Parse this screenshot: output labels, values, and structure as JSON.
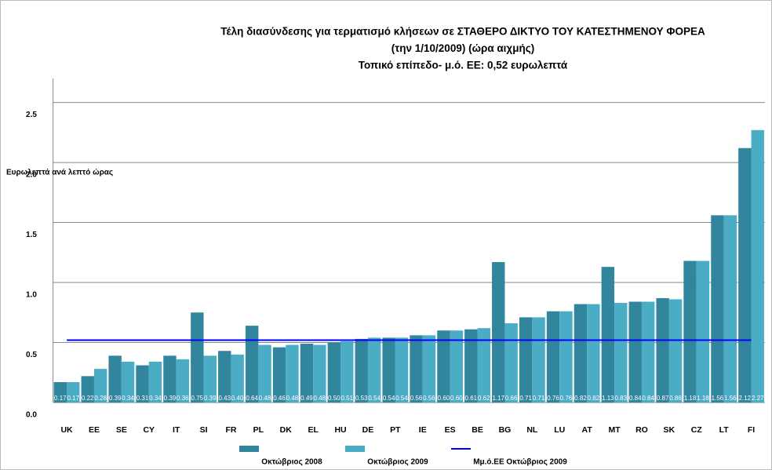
{
  "chart_data": {
    "type": "bar",
    "title": [
      "Τέλη διασύνδεσης για τερματισμό κλήσεων σε ΣΤΑΘΕΡΟ ΔΙΚΤΥΟ ΤΟΥ ΚΑΤΕΣΤΗΜΕΝΟΥ ΦΟΡΕΑ",
      "(την 1/10/2009) (ώρα αιχμής)",
      "Τοπικό επίπεδο- μ.ό. ΕΕ: 0,52 ευρωλεπτά"
    ],
    "y_label": "Ευρωλεπτά ανά λεπτό ώρας",
    "categories": [
      "UK",
      "EE",
      "SE",
      "CY",
      "IT",
      "SI",
      "FR",
      "PL",
      "DK",
      "EL",
      "HU",
      "DE",
      "PT",
      "IE",
      "ES",
      "BE",
      "BG",
      "NL",
      "LU",
      "AT",
      "MT",
      "RO",
      "SK",
      "CZ",
      "LT",
      "FI"
    ],
    "series": [
      {
        "name": "Οκτώβριος 2008",
        "color": "#31859c",
        "values": [
          0.17,
          0.22,
          0.39,
          0.31,
          0.39,
          0.75,
          0.43,
          0.64,
          0.46,
          0.49,
          0.5,
          0.53,
          0.54,
          0.56,
          0.6,
          0.61,
          1.17,
          0.71,
          0.76,
          0.82,
          1.13,
          0.84,
          0.87,
          1.18,
          1.56,
          2.12
        ],
        "value_labels": [
          "0.17",
          "0.22",
          "0.39",
          "0.31",
          "0.39",
          "0.75",
          "0.43",
          "0.64",
          "0.46",
          "0.49",
          "0.50",
          "0.53",
          "0.54",
          "0.56",
          "0.60",
          "0.61",
          "1.17",
          "0.71",
          "0.76",
          "0.82",
          "1.13",
          "0.84",
          "0.87",
          "1.18",
          "1.56",
          "2.12"
        ]
      },
      {
        "name": "Οκτώβριος 2009",
        "color": "#4bacc6",
        "values": [
          0.17,
          0.28,
          0.34,
          0.34,
          0.36,
          0.39,
          0.4,
          0.48,
          0.48,
          0.48,
          0.51,
          0.54,
          0.54,
          0.56,
          0.6,
          0.62,
          0.66,
          0.71,
          0.76,
          0.82,
          0.83,
          0.84,
          0.86,
          1.18,
          1.56,
          2.27
        ],
        "value_labels": [
          "0.17",
          "0.28",
          "0.34",
          "0.34",
          "0.36",
          "0.39",
          "0.40",
          "0.48",
          "0.48",
          "0.48",
          "0.51",
          "0.54",
          "0.54",
          "0.56",
          "0.60",
          "0.62",
          "0.66",
          "0.71",
          "0.76",
          "0.82",
          "0.83",
          "0.84",
          "0.86",
          "1.18",
          "1.56",
          "2.27"
        ]
      }
    ],
    "reference_line": {
      "name": "Μμ.ό.ΕΕ Οκτώβριος 2009",
      "color": "#0000ff",
      "value": 0.52
    },
    "ylim": [
      0,
      2.7
    ],
    "yticks": [
      {
        "value": 0,
        "label": "0.0"
      },
      {
        "value": 0.5,
        "label": "0.5"
      },
      {
        "value": 1,
        "label": "1.0"
      },
      {
        "value": 1.5,
        "label": "1.5"
      },
      {
        "value": 2,
        "label": "2.0"
      },
      {
        "value": 2.5,
        "label": "2.5"
      }
    ],
    "grid": true
  }
}
